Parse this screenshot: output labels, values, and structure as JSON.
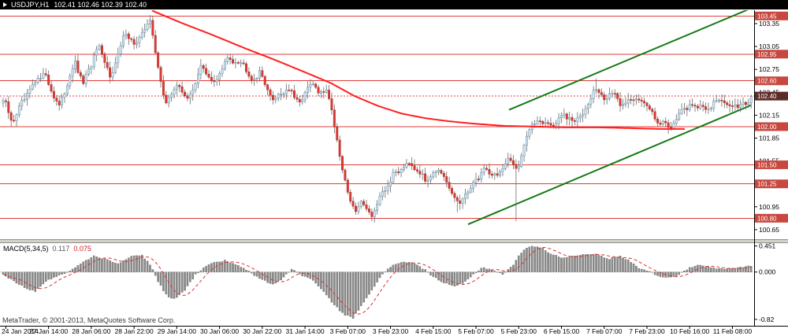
{
  "title_bar": {
    "symbol": "USDJPY,H1",
    "ohlc": "102.41 102.46 102.39 102.40"
  },
  "indicator_label": {
    "name": "MACD(5,34,5)",
    "macd_value": "0.117",
    "signal_value": "0.075"
  },
  "watermark": "MetaTrader, © 2001-2013, MetaQuotes Software Corp.",
  "colors": {
    "bull_fill": "#cfe9f8",
    "bull_stroke": "#5e8798",
    "bear_fill": "#df3b32",
    "bear_stroke": "#a82722",
    "wick": "#6a6a6a",
    "ma_line": "#ff1f1f",
    "level_line": "#e23b3b",
    "tag_bg": "#c84840",
    "current_tag_bg": "#5d2b28",
    "channel": "#157a15",
    "macd_bar": "#8c8c8c",
    "macd_bar_stroke": "#565656",
    "signal_line": "#d93030",
    "separator": "#d6d2ca",
    "titlebar_bg": "#000000",
    "titlebar_text": "#ffffff"
  },
  "chart_data": {
    "type": "candlestick",
    "symbol": "USDJPY",
    "timeframe": "H1",
    "ohlc": {
      "open": 102.41,
      "high": 102.46,
      "low": 102.39,
      "close": 102.4
    },
    "bars": 281,
    "price_axis": {
      "max": 103.525,
      "min": 100.525,
      "labels": [
        103.35,
        103.05,
        102.75,
        102.45,
        102.15,
        101.85,
        101.55,
        101.25,
        100.95,
        100.65
      ]
    },
    "time_axis": {
      "labels": [
        "24 Jan 2014",
        "27 Jan 14:00",
        "28 Jan 06:00",
        "28 Jan 22:00",
        "29 Jan 14:00",
        "30 Jan 06:00",
        "30 Jan 22:00",
        "31 Jan 14:00",
        "3 Feb 07:00",
        "3 Feb 23:00",
        "4 Feb 15:00",
        "5 Feb 07:00",
        "5 Feb 23:00",
        "6 Feb 15:00",
        "7 Feb 07:00",
        "7 Feb 23:00",
        "10 Feb 16:00",
        "11 Feb 08:00"
      ],
      "first_label_bar": 1,
      "bars_per_label": 16
    },
    "levels": [
      103.45,
      102.95,
      102.6,
      102.0,
      101.5,
      101.25,
      100.8
    ],
    "current_price": 102.4,
    "close_waypoints": [
      [
        0,
        102.3
      ],
      [
        5,
        102.35
      ],
      [
        15,
        102.05
      ],
      [
        30,
        102.35
      ],
      [
        55,
        102.72
      ],
      [
        75,
        102.25
      ],
      [
        95,
        102.85
      ],
      [
        105,
        102.55
      ],
      [
        125,
        103.05
      ],
      [
        140,
        102.65
      ],
      [
        160,
        103.25
      ],
      [
        172,
        103.05
      ],
      [
        190,
        103.42
      ],
      [
        200,
        102.8
      ],
      [
        210,
        102.3
      ],
      [
        225,
        102.55
      ],
      [
        240,
        102.35
      ],
      [
        255,
        102.8
      ],
      [
        270,
        102.55
      ],
      [
        290,
        102.9
      ],
      [
        310,
        102.82
      ],
      [
        320,
        102.6
      ],
      [
        330,
        102.72
      ],
      [
        345,
        102.35
      ],
      [
        365,
        102.5
      ],
      [
        380,
        102.3
      ],
      [
        395,
        102.58
      ],
      [
        405,
        102.42
      ],
      [
        415,
        102.5
      ],
      [
        425,
        102.0
      ],
      [
        435,
        101.4
      ],
      [
        450,
        100.85
      ],
      [
        460,
        101.05
      ],
      [
        470,
        100.82
      ],
      [
        485,
        101.1
      ],
      [
        500,
        101.38
      ],
      [
        520,
        101.55
      ],
      [
        540,
        101.3
      ],
      [
        555,
        101.45
      ],
      [
        575,
        101.1
      ],
      [
        583,
        100.98
      ],
      [
        600,
        101.25
      ],
      [
        615,
        101.45
      ],
      [
        630,
        101.35
      ],
      [
        645,
        101.55
      ],
      [
        658,
        101.48
      ],
      [
        670,
        101.95
      ],
      [
        685,
        102.1
      ],
      [
        700,
        102.0
      ],
      [
        715,
        102.15
      ],
      [
        730,
        102.05
      ],
      [
        745,
        102.28
      ],
      [
        755,
        102.52
      ],
      [
        765,
        102.35
      ],
      [
        775,
        102.45
      ],
      [
        790,
        102.28
      ],
      [
        805,
        102.4
      ],
      [
        820,
        102.28
      ],
      [
        835,
        102.08
      ],
      [
        850,
        102.0
      ],
      [
        865,
        102.2
      ],
      [
        880,
        102.3
      ],
      [
        895,
        102.22
      ],
      [
        910,
        102.35
      ],
      [
        925,
        102.28
      ],
      [
        945,
        102.3
      ],
      [
        957,
        102.4
      ]
    ],
    "wick_overrides": [
      [
        190,
        "high",
        103.46
      ],
      [
        580,
        "low",
        100.88
      ],
      [
        655,
        "low",
        100.76
      ],
      [
        755,
        "high",
        102.63
      ]
    ],
    "ma_waypoints": [
      [
        193,
        103.52
      ],
      [
        230,
        103.36
      ],
      [
        270,
        103.2
      ],
      [
        310,
        103.03
      ],
      [
        350,
        102.87
      ],
      [
        390,
        102.7
      ],
      [
        420,
        102.57
      ],
      [
        450,
        102.4
      ],
      [
        480,
        102.27
      ],
      [
        510,
        102.17
      ],
      [
        540,
        102.11
      ],
      [
        570,
        102.07
      ],
      [
        600,
        102.04
      ],
      [
        640,
        102.01
      ],
      [
        680,
        102.0
      ],
      [
        720,
        101.99
      ],
      [
        760,
        101.99
      ],
      [
        800,
        101.98
      ],
      [
        835,
        101.97
      ],
      [
        870,
        101.97
      ]
    ],
    "channel": {
      "lower": [
        [
          594,
          100.72
        ],
        [
          953,
          102.28
        ]
      ],
      "upper": [
        [
          646,
          102.22
        ],
        [
          953,
          103.55
        ]
      ]
    },
    "macd": {
      "name": "MACD(5,34,5)",
      "current_macd": 0.117,
      "current_signal": 0.075,
      "axis_labels": [
        "0.451",
        "0.000",
        "-0.82"
      ],
      "max": 0.5,
      "min": -0.93,
      "waypoints": [
        [
          5,
          -0.05
        ],
        [
          20,
          -0.18
        ],
        [
          35,
          -0.3
        ],
        [
          45,
          -0.33
        ],
        [
          60,
          -0.15
        ],
        [
          75,
          -0.05
        ],
        [
          90,
          0.02
        ],
        [
          105,
          0.18
        ],
        [
          120,
          0.28
        ],
        [
          135,
          0.22
        ],
        [
          150,
          0.15
        ],
        [
          165,
          0.26
        ],
        [
          180,
          0.3
        ],
        [
          192,
          0.1
        ],
        [
          200,
          -0.15
        ],
        [
          212,
          -0.42
        ],
        [
          222,
          -0.46
        ],
        [
          235,
          -0.3
        ],
        [
          248,
          -0.05
        ],
        [
          260,
          0.1
        ],
        [
          272,
          0.16
        ],
        [
          285,
          0.2
        ],
        [
          300,
          0.12
        ],
        [
          312,
          0.05
        ],
        [
          322,
          -0.06
        ],
        [
          332,
          -0.12
        ],
        [
          345,
          -0.22
        ],
        [
          358,
          -0.12
        ],
        [
          370,
          0.05
        ],
        [
          382,
          -0.05
        ],
        [
          395,
          -0.12
        ],
        [
          408,
          -0.3
        ],
        [
          420,
          -0.5
        ],
        [
          435,
          -0.72
        ],
        [
          448,
          -0.8
        ],
        [
          460,
          -0.55
        ],
        [
          472,
          -0.3
        ],
        [
          485,
          -0.05
        ],
        [
          498,
          0.12
        ],
        [
          512,
          0.18
        ],
        [
          525,
          0.15
        ],
        [
          538,
          0.05
        ],
        [
          550,
          -0.08
        ],
        [
          562,
          -0.18
        ],
        [
          575,
          -0.25
        ],
        [
          588,
          -0.2
        ],
        [
          600,
          -0.05
        ],
        [
          612,
          0.08
        ],
        [
          625,
          0.04
        ],
        [
          638,
          -0.04
        ],
        [
          650,
          0.1
        ],
        [
          662,
          0.35
        ],
        [
          675,
          0.46
        ],
        [
          688,
          0.42
        ],
        [
          700,
          0.3
        ],
        [
          715,
          0.25
        ],
        [
          730,
          0.28
        ],
        [
          745,
          0.32
        ],
        [
          758,
          0.3
        ],
        [
          772,
          0.22
        ],
        [
          785,
          0.28
        ],
        [
          798,
          0.2
        ],
        [
          810,
          0.08
        ],
        [
          822,
          0.02
        ],
        [
          835,
          -0.06
        ],
        [
          848,
          -0.1
        ],
        [
          860,
          -0.05
        ],
        [
          872,
          0.05
        ],
        [
          885,
          0.12
        ],
        [
          900,
          0.08
        ],
        [
          915,
          0.05
        ],
        [
          930,
          0.06
        ],
        [
          945,
          0.09
        ],
        [
          957,
          0.117
        ]
      ]
    }
  }
}
